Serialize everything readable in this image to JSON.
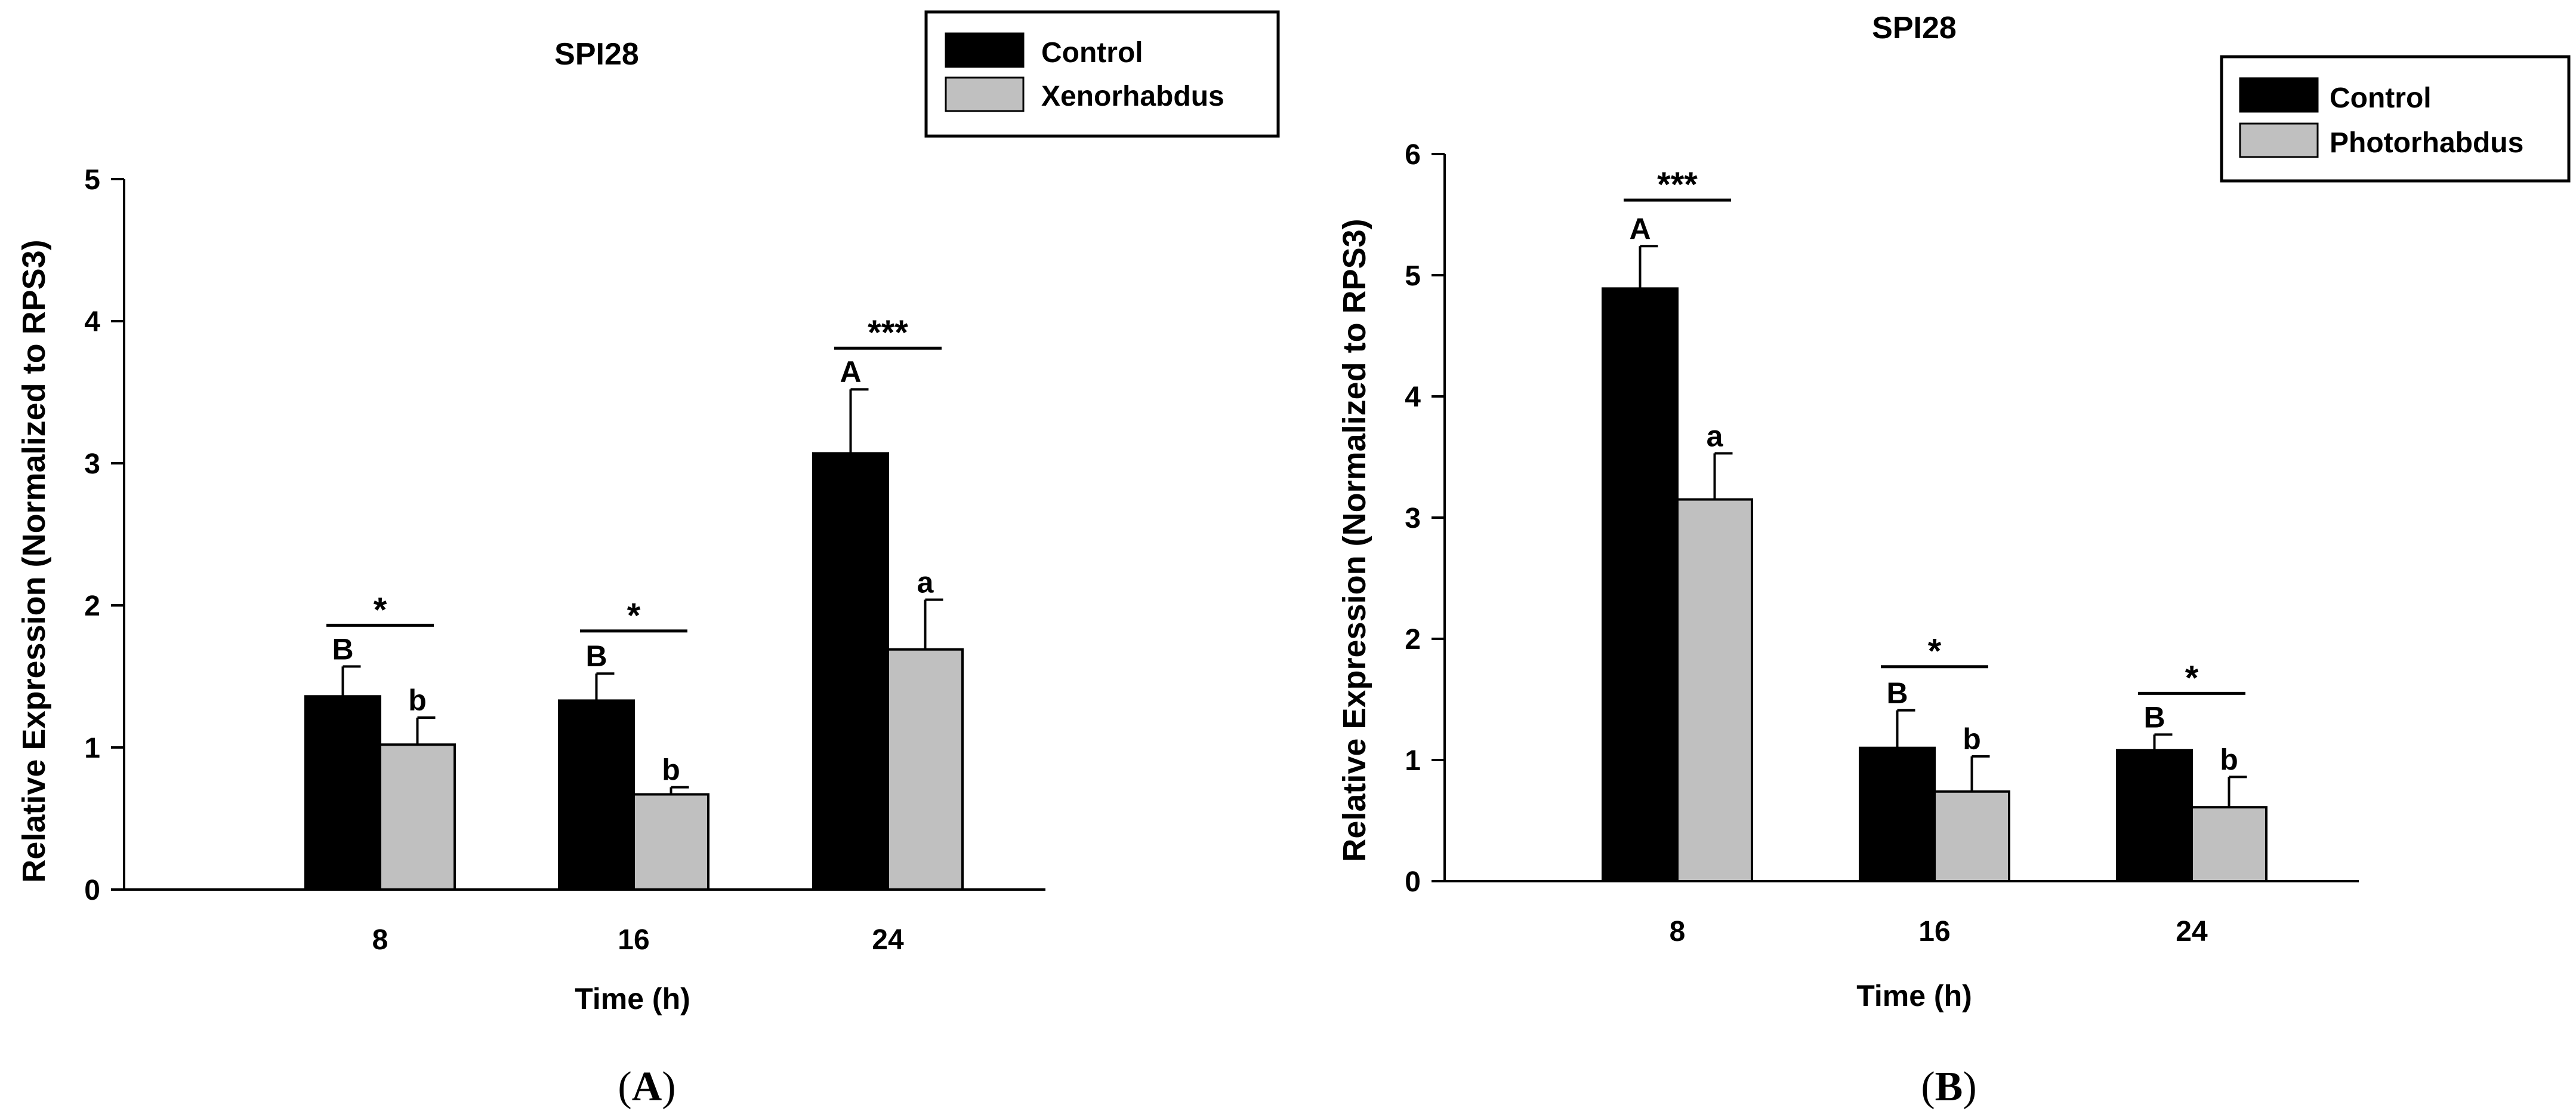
{
  "colors": {
    "control": "#000000",
    "treatment": "#c0c0c0",
    "axis": "#000000"
  },
  "chart_data": [
    {
      "panel_label_open": "(",
      "panel_label_letter": "A",
      "panel_label_close": ")",
      "type": "bar",
      "title": "SPI28",
      "xlabel": "Time (h)",
      "ylabel": "Relative Expression (Normalized to RPS3)",
      "ylim": [
        0,
        5
      ],
      "yticks": [
        "0",
        "1",
        "2",
        "3",
        "4",
        "5"
      ],
      "categories": [
        "8",
        "16",
        "24"
      ],
      "legend": {
        "placement": "top-right",
        "entries": [
          "Control",
          "Xenorhabdus"
        ]
      },
      "series": [
        {
          "name": "Control",
          "values": [
            1.36,
            1.33,
            3.07
          ],
          "errors": [
            0.21,
            0.19,
            0.45
          ],
          "letters": [
            "B",
            "B",
            "A"
          ]
        },
        {
          "name": "Xenorhabdus",
          "values": [
            1.02,
            0.67,
            1.69
          ],
          "errors": [
            0.19,
            0.05,
            0.35
          ],
          "letters": [
            "b",
            "b",
            "a"
          ]
        }
      ],
      "significance": [
        {
          "label": "*",
          "y": 1.86
        },
        {
          "label": "*",
          "y": 1.82
        },
        {
          "label": "***",
          "y": 3.81
        }
      ]
    },
    {
      "panel_label_open": "(",
      "panel_label_letter": "B",
      "panel_label_close": ")",
      "type": "bar",
      "title": "SPI28",
      "xlabel": "Time (h)",
      "ylabel": "Relative Expression (Normalized to RPS3)",
      "ylim": [
        0,
        6
      ],
      "yticks": [
        "0",
        "1",
        "2",
        "3",
        "4",
        "5",
        "6"
      ],
      "categories": [
        "8",
        "16",
        "24"
      ],
      "legend": {
        "placement": "top-right",
        "entries": [
          "Control",
          "Photorhabdus"
        ]
      },
      "series": [
        {
          "name": "Control",
          "values": [
            4.89,
            1.1,
            1.08
          ],
          "errors": [
            0.35,
            0.31,
            0.13
          ],
          "letters": [
            "A",
            "B",
            "B"
          ]
        },
        {
          "name": "Photorhabdus",
          "values": [
            3.15,
            0.74,
            0.61
          ],
          "errors": [
            0.38,
            0.29,
            0.25
          ],
          "letters": [
            "a",
            "b",
            "b"
          ]
        }
      ],
      "significance": [
        {
          "label": "***",
          "y": 5.62
        },
        {
          "label": "*",
          "y": 1.77
        },
        {
          "label": "*",
          "y": 1.55
        }
      ]
    }
  ]
}
